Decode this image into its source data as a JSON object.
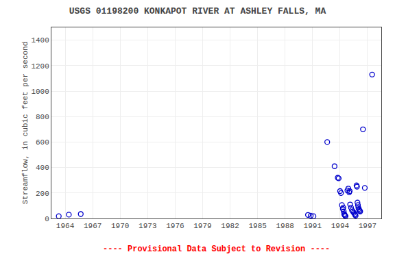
{
  "chart_data": {
    "type": "scatter",
    "title": "USGS 01198200 KONKAPOT RIVER AT ASHLEY FALLS, MA",
    "ylabel": "Streamflow, in cubic feet per second",
    "annotations": [
      {
        "text": "---- Provisional Data Subject to Revision ----",
        "color": "red"
      }
    ],
    "x": [
      1963.3,
      1964.4,
      1965.7,
      1990.5,
      1990.8,
      1991.1,
      1992.6,
      1993.4,
      1993.75,
      1993.85,
      1994.0,
      1994.1,
      1994.2,
      1994.3,
      1994.35,
      1994.4,
      1994.45,
      1994.5,
      1994.55,
      1994.6,
      1994.8,
      1994.9,
      1995.0,
      1995.05,
      1995.1,
      1995.2,
      1995.3,
      1995.4,
      1995.5,
      1995.6,
      1995.65,
      1995.7,
      1995.8,
      1995.85,
      1995.9,
      1995.95,
      1996.0,
      1996.05,
      1996.1,
      1996.15,
      1996.2,
      1996.5,
      1996.7,
      1997.5
    ],
    "values": [
      18,
      30,
      35,
      28,
      22,
      18,
      600,
      410,
      320,
      315,
      215,
      200,
      105,
      75,
      85,
      55,
      35,
      28,
      22,
      18,
      220,
      235,
      205,
      215,
      110,
      85,
      65,
      55,
      45,
      35,
      28,
      22,
      260,
      250,
      125,
      105,
      85,
      75,
      65,
      60,
      55,
      700,
      240,
      1130
    ],
    "color": "#0000cc",
    "marker": "circle-open",
    "xlim": [
      1962.5,
      1998.5
    ],
    "ylim": [
      0,
      1500
    ],
    "xticks": [
      1964,
      1967,
      1970,
      1973,
      1976,
      1979,
      1982,
      1985,
      1988,
      1991,
      1994,
      1997
    ],
    "yticks": [
      0,
      200,
      400,
      600,
      800,
      1000,
      1200,
      1400
    ],
    "grid": true
  }
}
